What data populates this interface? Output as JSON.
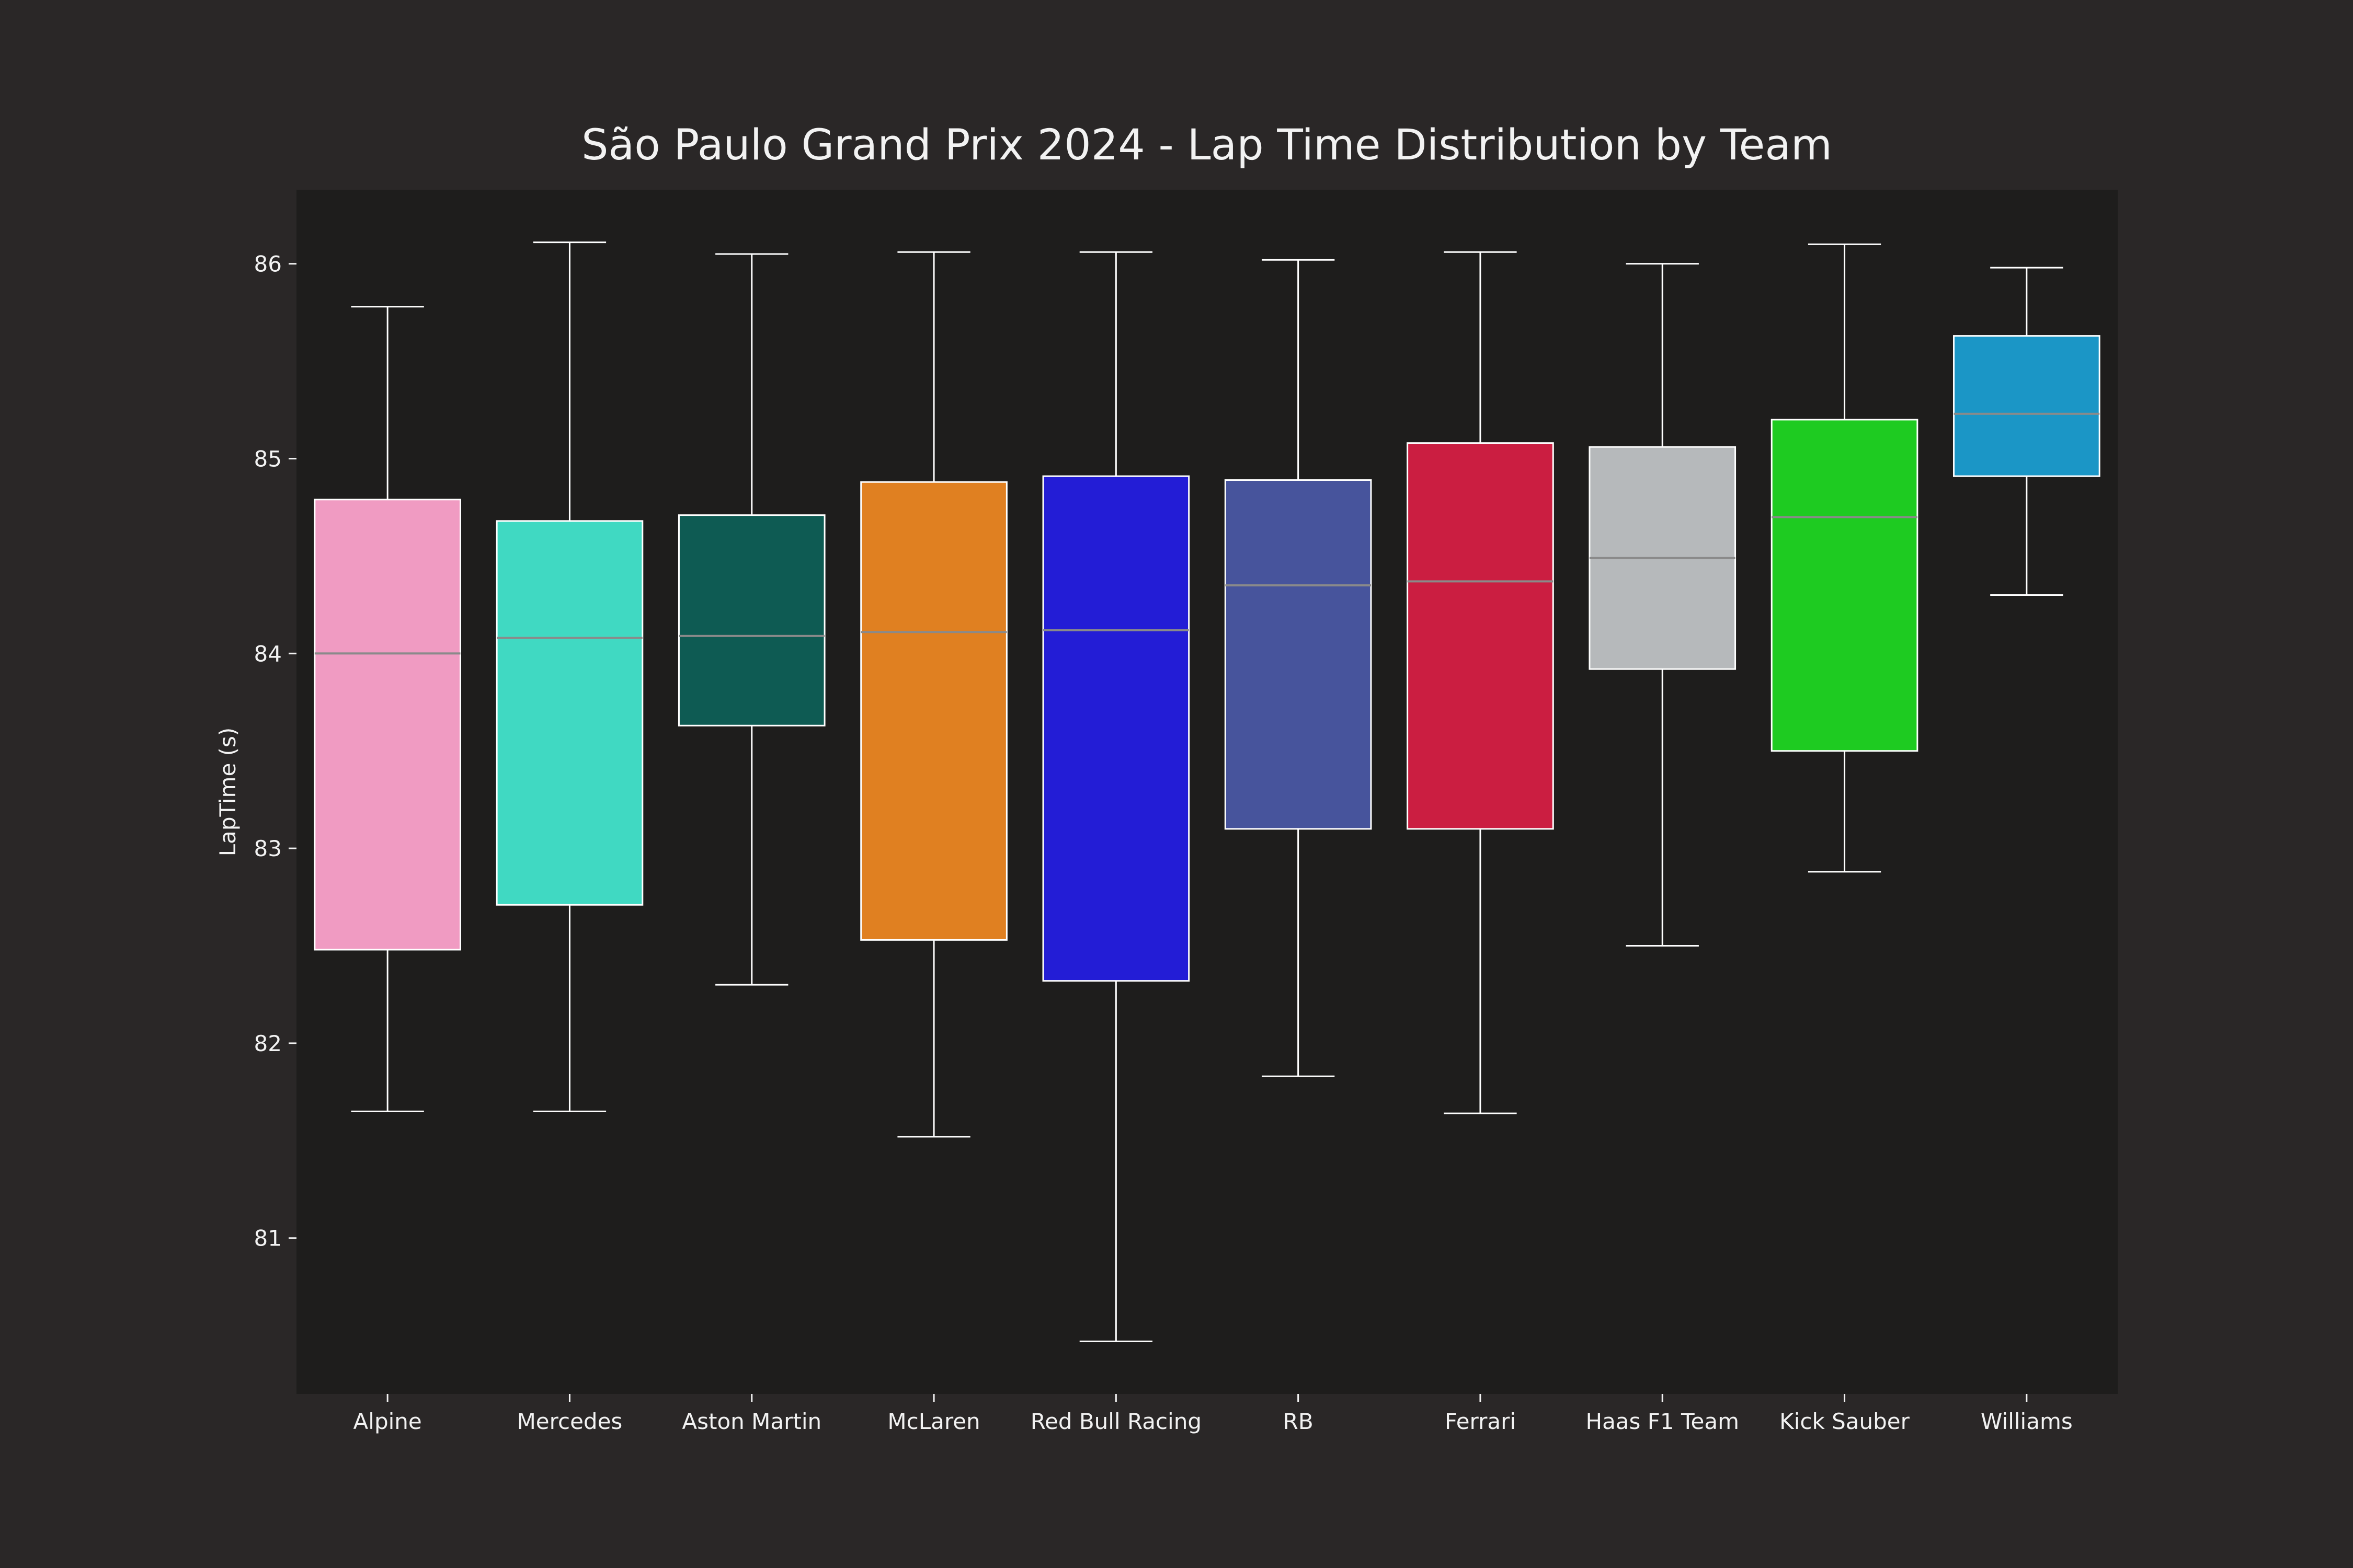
{
  "chart_data": {
    "type": "box",
    "title": "São Paulo Grand Prix 2024 - Lap Time Distribution by Team",
    "xlabel": "",
    "ylabel": "LapTime (s)",
    "ylim": [
      80.2,
      86.38
    ],
    "yticks": [
      81,
      82,
      83,
      84,
      85,
      86
    ],
    "grid": false,
    "legend": "none",
    "colors": {
      "figure_background": "#2a2727",
      "plot_background": "#1e1d1c",
      "text": "#f2f2f2",
      "box_edge": "#ffffff",
      "median": "#8a8a8a"
    },
    "categories": [
      "Alpine",
      "Mercedes",
      "Aston Martin",
      "McLaren",
      "Red Bull Racing",
      "RB",
      "Ferrari",
      "Haas F1 Team",
      "Kick Sauber",
      "Williams"
    ],
    "series": [
      {
        "category": "Alpine",
        "color": "#f09bc2",
        "whisker_low": 81.65,
        "q1": 82.48,
        "median": 84.0,
        "q3": 84.79,
        "whisker_high": 85.78
      },
      {
        "category": "Mercedes",
        "color": "#40d9c2",
        "whisker_low": 81.65,
        "q1": 82.71,
        "median": 84.08,
        "q3": 84.68,
        "whisker_high": 86.11
      },
      {
        "category": "Aston Martin",
        "color": "#0e5b53",
        "whisker_low": 82.3,
        "q1": 83.63,
        "median": 84.09,
        "q3": 84.71,
        "whisker_high": 86.05
      },
      {
        "category": "McLaren",
        "color": "#e08021",
        "whisker_low": 81.52,
        "q1": 82.53,
        "median": 84.11,
        "q3": 84.88,
        "whisker_high": 86.06
      },
      {
        "category": "Red Bull Racing",
        "color": "#231dd6",
        "whisker_low": 80.47,
        "q1": 82.32,
        "median": 84.12,
        "q3": 84.91,
        "whisker_high": 86.06
      },
      {
        "category": "RB",
        "color": "#47549c",
        "whisker_low": 81.83,
        "q1": 83.1,
        "median": 84.35,
        "q3": 84.89,
        "whisker_high": 86.02
      },
      {
        "category": "Ferrari",
        "color": "#cb1e41",
        "whisker_low": 81.64,
        "q1": 83.1,
        "median": 84.37,
        "q3": 85.08,
        "whisker_high": 86.06
      },
      {
        "category": "Haas F1 Team",
        "color": "#b6b9bb",
        "whisker_low": 82.5,
        "q1": 83.92,
        "median": 84.49,
        "q3": 85.06,
        "whisker_high": 86.0
      },
      {
        "category": "Kick Sauber",
        "color": "#1ecb21",
        "whisker_low": 82.88,
        "q1": 83.5,
        "median": 84.7,
        "q3": 85.2,
        "whisker_high": 86.1
      },
      {
        "category": "Williams",
        "color": "#1b96c6",
        "whisker_low": 84.3,
        "q1": 84.91,
        "median": 85.23,
        "q3": 85.63,
        "whisker_high": 85.98
      }
    ]
  }
}
